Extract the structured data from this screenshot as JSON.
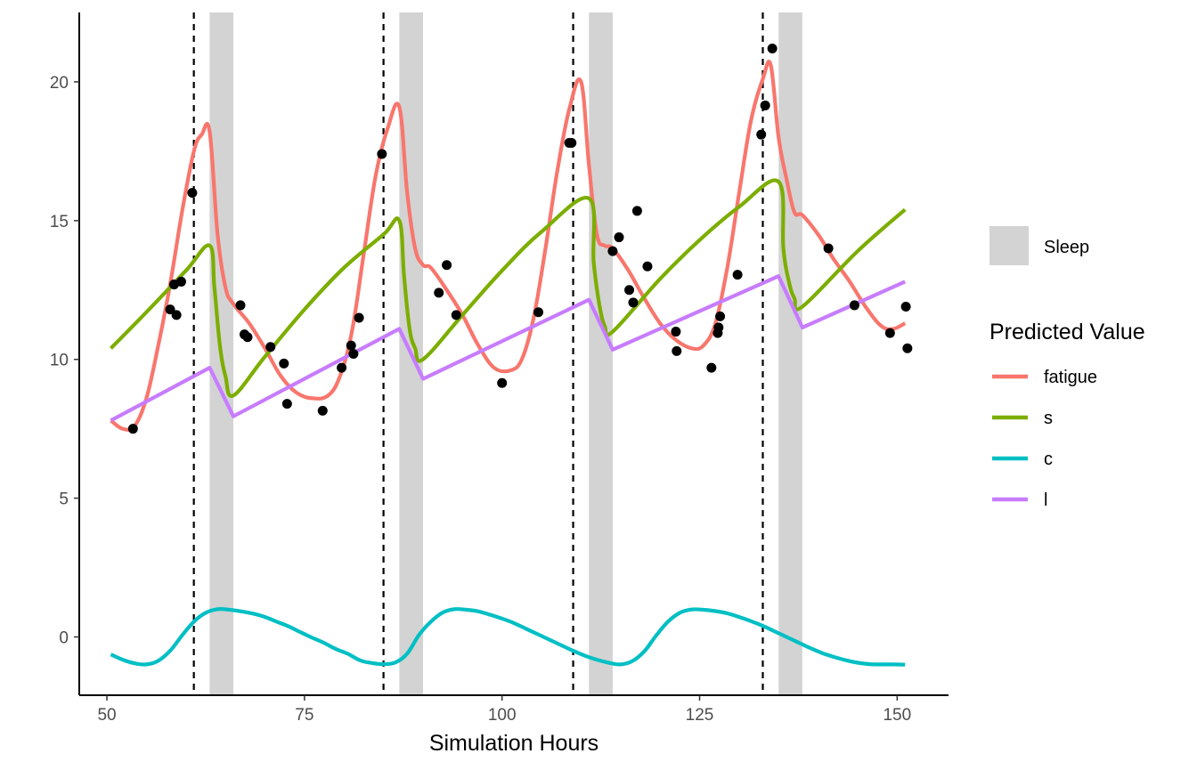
{
  "chart_data": {
    "type": "line",
    "title": "",
    "xlabel": "Simulation Hours",
    "ylabel": "",
    "xlim": [
      46.5,
      156.5
    ],
    "ylim": [
      -2.1,
      22.5
    ],
    "x_ticks": [
      50,
      75,
      100,
      125,
      150
    ],
    "y_ticks": [
      0,
      5,
      10,
      15,
      20
    ],
    "grid": false,
    "legend_position": "right",
    "legend": {
      "fill_legend": {
        "label": "Sleep",
        "color": "#d3d3d3"
      },
      "line_legend_title": "Predicted Value"
    },
    "sleep_periods": [
      [
        63,
        66
      ],
      [
        87,
        90
      ],
      [
        111,
        114
      ],
      [
        135,
        138
      ]
    ],
    "vlines": [
      61,
      85,
      109,
      133
    ],
    "series": [
      {
        "name": "fatigue",
        "color": "#F8766D",
        "x": [
          50.5,
          52,
          53.5,
          55,
          56.5,
          58,
          59.5,
          61,
          62,
          63,
          64,
          65,
          66,
          68,
          70,
          72,
          74,
          76,
          78,
          79.5,
          81,
          82.5,
          84,
          85.5,
          87,
          88,
          89,
          90,
          91,
          93,
          95,
          97,
          99,
          101,
          102.5,
          104,
          105.5,
          107,
          108.5,
          110,
          111,
          112,
          113,
          114,
          116,
          118,
          120,
          122,
          124,
          125.5,
          127,
          128.5,
          130,
          131.5,
          133,
          134,
          135,
          136,
          137,
          138,
          140,
          142,
          144,
          146,
          148,
          149.5,
          151
        ],
        "y": [
          7.8,
          7.5,
          7.6,
          8.6,
          10.5,
          12.7,
          15.3,
          17.5,
          18.1,
          18.2,
          14.5,
          12.6,
          12.0,
          11.3,
          10.4,
          9.4,
          8.8,
          8.6,
          8.7,
          9.4,
          11.0,
          13.8,
          16.6,
          18.3,
          19.1,
          16.0,
          14.0,
          13.4,
          13.3,
          12.5,
          11.6,
          10.5,
          9.7,
          9.6,
          10.0,
          11.5,
          14.0,
          16.8,
          19.0,
          20.0,
          17.0,
          14.5,
          14.1,
          14.0,
          13.2,
          12.2,
          11.3,
          10.7,
          10.4,
          10.5,
          11.3,
          13.3,
          16.0,
          18.6,
          20.1,
          20.6,
          18.0,
          16.5,
          15.3,
          15.2,
          14.5,
          13.6,
          12.8,
          11.9,
          11.2,
          11.1,
          11.3
        ]
      },
      {
        "name": "s",
        "color": "#7CAE00",
        "x": [
          50.5,
          55,
          60,
          63,
          63.6,
          64.3,
          65,
          66,
          70,
          75,
          80,
          85,
          87,
          87.6,
          88.3,
          89,
          90,
          95,
          100,
          105,
          111,
          111.6,
          112.3,
          113,
          114,
          120,
          125,
          130,
          135,
          135.6,
          136.3,
          137,
          138,
          145,
          151
        ],
        "y": [
          10.4,
          11.7,
          13.2,
          14.1,
          12.6,
          10.5,
          9.4,
          8.7,
          10.1,
          11.8,
          13.3,
          14.5,
          15.0,
          13.0,
          11.1,
          10.4,
          10.0,
          11.6,
          13.2,
          14.6,
          15.8,
          13.5,
          12.0,
          11.2,
          11.0,
          12.9,
          14.3,
          15.5,
          16.4,
          14.0,
          12.8,
          12.2,
          11.9,
          13.9,
          15.4
        ]
      },
      {
        "name": "c",
        "color": "#00BFC4",
        "x": [
          50.5,
          52,
          53.5,
          55,
          56.5,
          58,
          59.5,
          61,
          62.5,
          64,
          65.5,
          67,
          68.5,
          70,
          71.5,
          73,
          74.5,
          76,
          77.5,
          79,
          80.5,
          82,
          83.5,
          85,
          86.5,
          88,
          89.5,
          91,
          92.5,
          94,
          95.5,
          97,
          98.5,
          100,
          101.5,
          103,
          104.5,
          106,
          107.5,
          109,
          110.5,
          112,
          113.5,
          115,
          116.5,
          118,
          119.5,
          121,
          122.5,
          124,
          125.5,
          127,
          128.5,
          130,
          131.5,
          133,
          134.5,
          136,
          137.5,
          139,
          140.5,
          142,
          143.5,
          145,
          146.5,
          148,
          149.5,
          151
        ],
        "y": [
          -0.63,
          -0.82,
          -0.95,
          -0.99,
          -0.86,
          -0.5,
          0.05,
          0.55,
          0.87,
          1.0,
          0.98,
          0.92,
          0.84,
          0.72,
          0.55,
          0.38,
          0.17,
          -0.03,
          -0.22,
          -0.44,
          -0.61,
          -0.84,
          -0.94,
          -0.98,
          -0.92,
          -0.6,
          0.07,
          0.55,
          0.88,
          1.0,
          0.98,
          0.92,
          0.8,
          0.66,
          0.5,
          0.3,
          0.1,
          -0.1,
          -0.3,
          -0.5,
          -0.68,
          -0.82,
          -0.93,
          -0.99,
          -0.87,
          -0.52,
          0.05,
          0.55,
          0.87,
          0.99,
          0.98,
          0.93,
          0.85,
          0.72,
          0.57,
          0.4,
          0.2,
          0.0,
          -0.2,
          -0.4,
          -0.58,
          -0.72,
          -0.84,
          -0.93,
          -0.98,
          -0.99,
          -0.99,
          -1.0
        ]
      },
      {
        "name": "l",
        "color": "#C77CFF",
        "x": [
          50.5,
          63,
          66,
          87,
          90,
          111,
          114,
          135,
          138,
          151
        ],
        "y": [
          7.8,
          9.7,
          7.95,
          11.1,
          9.3,
          12.15,
          10.35,
          13.0,
          11.15,
          12.8
        ]
      }
    ],
    "points": {
      "color": "#000000",
      "x": [
        53.3,
        58.0,
        58.5,
        58.8,
        59.4,
        60.8,
        66.9,
        67.4,
        67.8,
        70.7,
        72.4,
        72.8,
        77.3,
        79.7,
        80.9,
        81.2,
        81.9,
        84.8,
        92.0,
        93.0,
        94.2,
        100.0,
        104.6,
        108.5,
        108.8,
        114.0,
        114.8,
        116.1,
        116.6,
        117.1,
        118.4,
        122.0,
        122.1,
        126.5,
        127.3,
        127.4,
        127.6,
        129.8,
        132.8,
        133.3,
        134.2,
        141.3,
        144.6,
        149.1,
        151.1,
        151.3
      ],
      "y": [
        7.5,
        11.8,
        12.7,
        11.6,
        12.8,
        16.0,
        11.95,
        10.9,
        10.8,
        10.45,
        9.85,
        8.4,
        8.15,
        9.7,
        10.5,
        10.2,
        11.5,
        17.4,
        12.4,
        13.4,
        11.6,
        9.15,
        11.7,
        17.8,
        17.8,
        13.9,
        14.4,
        12.5,
        12.05,
        15.35,
        13.35,
        11.0,
        10.3,
        9.7,
        10.95,
        11.15,
        11.55,
        13.05,
        18.1,
        19.15,
        21.2,
        14.0,
        11.95,
        10.95,
        11.9,
        10.4
      ]
    }
  }
}
